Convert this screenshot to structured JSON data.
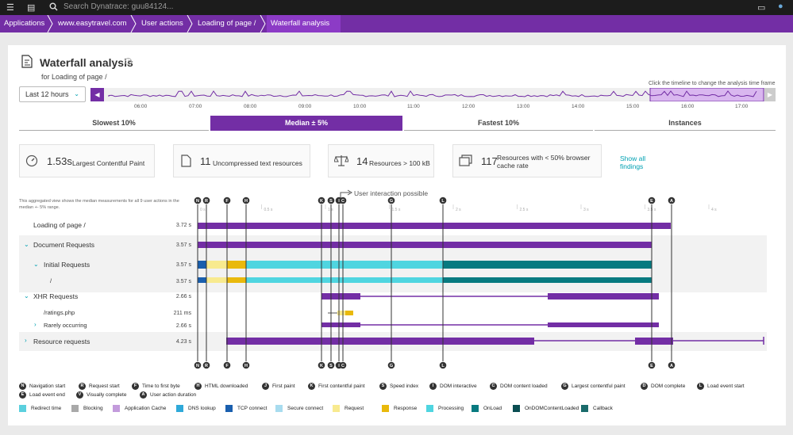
{
  "topbar": {
    "search_placeholder": "Search Dynatrace: guu84124..."
  },
  "breadcrumbs": [
    "Applications",
    "www.easytravel.com",
    "User actions",
    "Loading of page /",
    "Waterfall analysis"
  ],
  "page": {
    "title": "Waterfall analysis",
    "subtitle": "for Loading of page /"
  },
  "timeframe": {
    "selected": "Last 12 hours",
    "hint": "Click the timeline to change the analysis time frame",
    "ticks": [
      "06:00",
      "07:00",
      "08:00",
      "09:00",
      "10:00",
      "11:00",
      "12:00",
      "13:00",
      "14:00",
      "15:00",
      "16:00",
      "17:00"
    ]
  },
  "tabs": [
    {
      "label": "Slowest 10%",
      "active": false
    },
    {
      "label": "Median ± 5%",
      "active": true
    },
    {
      "label": "Fastest 10%",
      "active": false
    },
    {
      "label": "Instances",
      "active": false
    }
  ],
  "findings": [
    {
      "icon": "gauge-icon",
      "value": "1.53",
      "unit": "s",
      "label": "Largest Contentful Paint"
    },
    {
      "icon": "document-icon",
      "value": "11",
      "unit": "",
      "label": "Uncompressed text resources"
    },
    {
      "icon": "scale-icon",
      "value": "14",
      "unit": "",
      "label": "Resources > 100 kB"
    },
    {
      "icon": "copy-icon",
      "value": "117",
      "unit": "",
      "label": "Resources with < 50% browser cache rate"
    }
  ],
  "show_all_findings": "Show all findings",
  "aggregate_note": "This aggregated view shows the median measurements for all 9 user actions in the median +- 5% range.",
  "user_interaction_label": "User interaction possible",
  "timing_axis_ticks": [
    "0 s",
    "0.5 s",
    "1 s",
    "1.5 s",
    "2 s",
    "2.5 s",
    "3 s",
    "3.5 s",
    "4 s"
  ],
  "markers": [
    "N",
    "R",
    "F",
    "H",
    "K",
    "S",
    "I",
    "C",
    "G",
    "L",
    "E",
    "A"
  ],
  "rows": [
    {
      "label": "Loading of page /",
      "duration": "3.72 s"
    },
    {
      "label": "Document Requests",
      "duration": "3.57 s"
    },
    {
      "label": "Initial Requests",
      "duration": "3.57 s"
    },
    {
      "label": "/",
      "duration": "3.57 s"
    },
    {
      "label": "XHR Requests",
      "duration": "2.66 s"
    },
    {
      "label": "/ratings.php",
      "duration": "211 ms"
    },
    {
      "label": "Rarely occurring",
      "duration": "2.66 s"
    },
    {
      "label": "Resource requests",
      "duration": "4.23 s"
    }
  ],
  "legend_markers": [
    {
      "badge": "N",
      "label": "Navigation start"
    },
    {
      "badge": "R",
      "label": "Request start"
    },
    {
      "badge": "F",
      "label": "Time to first byte"
    },
    {
      "badge": "H",
      "label": "HTML downloaded"
    },
    {
      "badge": "J",
      "label": "First paint"
    },
    {
      "badge": "K",
      "label": "First contentful paint"
    },
    {
      "badge": "S",
      "label": "Speed index"
    },
    {
      "badge": "I",
      "label": "DOM interactive"
    },
    {
      "badge": "C",
      "label": "DOM content loaded"
    },
    {
      "badge": "G",
      "label": "Largest contentful paint"
    },
    {
      "badge": "D",
      "label": "DOM complete"
    },
    {
      "badge": "L",
      "label": "Load event start"
    },
    {
      "badge": "E",
      "label": "Load event end"
    },
    {
      "badge": "V",
      "label": "Visually complete"
    },
    {
      "badge": "A",
      "label": "User action duration"
    }
  ],
  "legend_phases": [
    {
      "label": "Redirect time",
      "color": "#5bd0de"
    },
    {
      "label": "Blocking",
      "color": "#a9a9a9"
    },
    {
      "label": "Application Cache",
      "color": "#c39bdc"
    },
    {
      "label": "DNS lookup",
      "color": "#2fa9d9"
    },
    {
      "label": "TCP connect",
      "color": "#1a5fae"
    },
    {
      "label": "Secure connect",
      "color": "#a8dcef"
    },
    {
      "label": "Request",
      "color": "#f8ea8f"
    },
    {
      "label": "Response",
      "color": "#e9b90c"
    },
    {
      "label": "Processing",
      "color": "#4fd5e0"
    },
    {
      "label": "OnLoad",
      "color": "#077a80"
    },
    {
      "label": "OnDOMContentLoaded",
      "color": "#0a4e52"
    },
    {
      "label": "Callback",
      "color": "#1a6b6b"
    }
  ],
  "colors": {
    "accent": "#732ea5",
    "link": "#00a1b2"
  }
}
